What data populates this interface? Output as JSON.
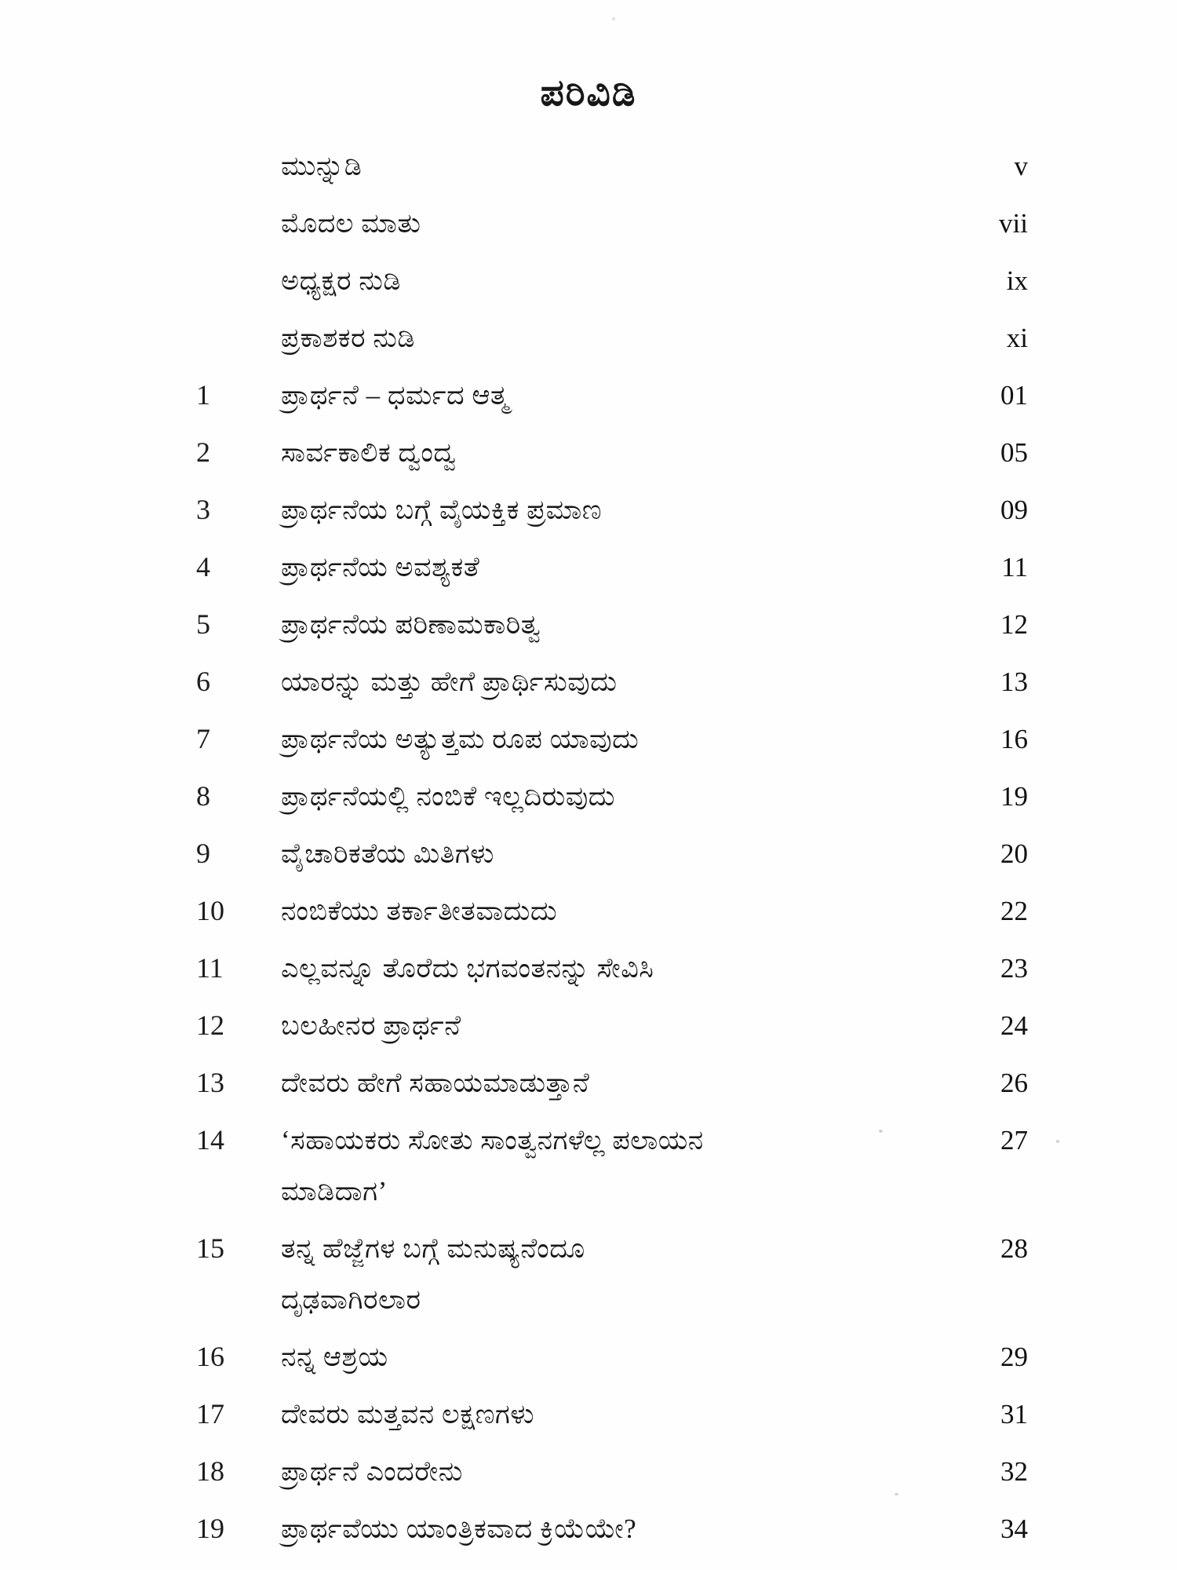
{
  "colors": {
    "background": "#fefefe",
    "text": "#171717"
  },
  "toc": {
    "title": "ಪರಿವಿಡಿ",
    "front_matter": [
      {
        "title": "ಮುನ್ನುಡಿ",
        "page": "v"
      },
      {
        "title": "ಮೊದಲ ಮಾತು",
        "page": "vii"
      },
      {
        "title": "ಅಧ್ಯಕ್ಷರ ನುಡಿ",
        "page": "ix"
      },
      {
        "title": "ಪ್ರಕಾಶಕರ ನುಡಿ",
        "page": "xi"
      }
    ],
    "chapters": [
      {
        "no": "1",
        "title": "ಪ್ರಾರ್ಥನೆ – ಧರ್ಮದ ಆತ್ಮ",
        "page": "01"
      },
      {
        "no": "2",
        "title": "ಸಾರ್ವಕಾಲಿಕ ದ್ವಂದ್ವ",
        "page": "05"
      },
      {
        "no": "3",
        "title": "ಪ್ರಾರ್ಥನೆಯ ಬಗ್ಗೆ ವೈಯಕ್ತಿಕ ಪ್ರಮಾಣ",
        "page": "09"
      },
      {
        "no": "4",
        "title": "ಪ್ರಾರ್ಥನೆಯ ಅವಶ್ಯಕತೆ",
        "page": "11"
      },
      {
        "no": "5",
        "title": "ಪ್ರಾರ್ಥನೆಯ ಪರಿಣಾಮಕಾರಿತ್ವ",
        "page": "12"
      },
      {
        "no": "6",
        "title": "ಯಾರನ್ನು ಮತ್ತು ಹೇಗೆ ಪ್ರಾರ್ಥಿಸುವುದು",
        "page": "13"
      },
      {
        "no": "7",
        "title": "ಪ್ರಾರ್ಥನೆಯ ಅತ್ಯುತ್ತಮ ರೂಪ ಯಾವುದು",
        "page": "16"
      },
      {
        "no": "8",
        "title": "ಪ್ರಾರ್ಥನೆಯಲ್ಲಿ ನಂಬಿಕೆ ಇಲ್ಲದಿರುವುದು",
        "page": "19"
      },
      {
        "no": "9",
        "title": "ವೈಚಾರಿಕತೆಯ ಮಿತಿಗಳು",
        "page": "20"
      },
      {
        "no": "10",
        "title": "ನಂಬಿಕೆಯು ತರ್ಕಾತೀತವಾದುದು",
        "page": "22"
      },
      {
        "no": "11",
        "title": "ಎಲ್ಲವನ್ನೂ ತೊರೆದು ಭಗವಂತನನ್ನು ಸೇವಿಸಿ",
        "page": "23"
      },
      {
        "no": "12",
        "title": "ಬಲಹೀನರ ಪ್ರಾರ್ಥನೆ",
        "page": "24"
      },
      {
        "no": "13",
        "title": "ದೇವರು ಹೇಗೆ ಸಹಾಯಮಾಡುತ್ತಾನೆ",
        "page": "26"
      },
      {
        "no": "14",
        "title": "‘ಸಹಾಯಕರು ಸೋತು ಸಾಂತ್ವನಗಳೆಲ್ಲ ಪಲಾಯನ",
        "title_line2": "ಮಾಡಿದಾಗ’",
        "page": "27"
      },
      {
        "no": "15",
        "title": "ತನ್ನ ಹೆಜ್ಜೆಗಳ ಬಗ್ಗೆ ಮನುಷ್ಯನೆಂದೂ",
        "title_line2": "ದೃಢವಾಗಿರಲಾರ",
        "page": "28"
      },
      {
        "no": "16",
        "title": "ನನ್ನ ಆಶ್ರಯ",
        "page": "29"
      },
      {
        "no": "17",
        "title": "ದೇವರು ಮತ್ತವನ ಲಕ್ಷಣಗಳು",
        "page": "31"
      },
      {
        "no": "18",
        "title": "ಪ್ರಾರ್ಥನೆ ಎಂದರೇನು",
        "page": "32"
      },
      {
        "no": "19",
        "title": "ಪ್ರಾರ್ಥವೆಯು ಯಾಂತ್ರಿಕವಾದ ಕ್ರಿಯೆಯೇ?",
        "page": "34"
      }
    ]
  }
}
